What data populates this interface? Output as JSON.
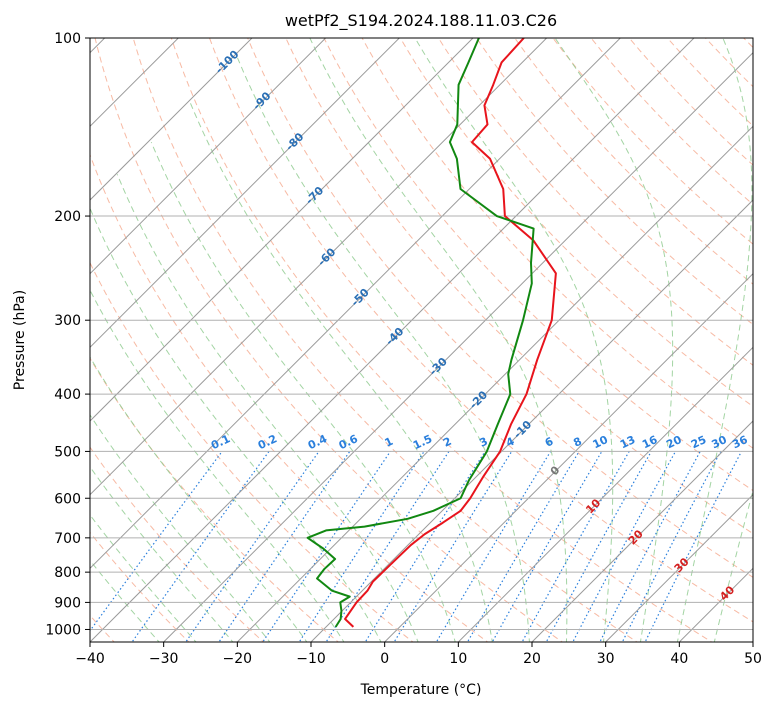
{
  "chart_data": {
    "type": "line",
    "diagram": "skew-T log-P",
    "title": "wetPf2_S194.2024.188.11.03.C26",
    "xlabel": "Temperature (°C)",
    "ylabel": "Pressure (hPa)",
    "xlim": [
      -40,
      50
    ],
    "ylim": [
      1050,
      100
    ],
    "y_scale": "log",
    "grid": true,
    "x_ticks": [
      -40,
      -30,
      -20,
      -10,
      0,
      10,
      20,
      30,
      40,
      50
    ],
    "x_tick_labels": [
      "−40",
      "−30",
      "−20",
      "−10",
      "0",
      "10",
      "20",
      "30",
      "40",
      "50"
    ],
    "y_ticks": [
      1000,
      900,
      800,
      700,
      600,
      500,
      400,
      300,
      200,
      100
    ],
    "y_tick_labels": [
      "1000",
      "900",
      "800",
      "700",
      "600",
      "500",
      "400",
      "300",
      "200",
      "100"
    ],
    "colors": {
      "temperature": "#e8141c",
      "dewpoint": "#118811",
      "isotherm": "#9a9a9a",
      "dry_adiabat": "#f4a386",
      "moist_adiabat": "#8cc98c",
      "mixing_ratio": "#2a7fdc",
      "isotherm_label": "#2a6fb5",
      "saturation_label": "#d42020"
    },
    "series": [
      {
        "name": "temperature",
        "points": [
          [
            -6.3,
            990
          ],
          [
            -8.5,
            960
          ],
          [
            -9.2,
            900
          ],
          [
            -9.3,
            860
          ],
          [
            -9.8,
            830
          ],
          [
            -9.7,
            770
          ],
          [
            -9.6,
            720
          ],
          [
            -9.2,
            690
          ],
          [
            -8.3,
            660
          ],
          [
            -7.5,
            630
          ],
          [
            -7.9,
            600
          ],
          [
            -9.1,
            550
          ],
          [
            -10.2,
            500
          ],
          [
            -12.4,
            450
          ],
          [
            -14.4,
            400
          ],
          [
            -17.6,
            350
          ],
          [
            -21.0,
            300
          ],
          [
            -26.8,
            250
          ],
          [
            -34.3,
            220
          ],
          [
            -41.5,
            200
          ],
          [
            -45.4,
            180
          ],
          [
            -51.3,
            160
          ],
          [
            -56.0,
            150
          ],
          [
            -56.3,
            140
          ],
          [
            -59.3,
            130
          ],
          [
            -60.9,
            120
          ],
          [
            -62.8,
            110
          ],
          [
            -63.1,
            100
          ]
        ]
      },
      {
        "name": "dewpoint",
        "points": [
          [
            -8.7,
            990
          ],
          [
            -9.1,
            960
          ],
          [
            -10.1,
            930
          ],
          [
            -11.4,
            900
          ],
          [
            -10.9,
            880
          ],
          [
            -14.1,
            860
          ],
          [
            -17.8,
            820
          ],
          [
            -18.1,
            790
          ],
          [
            -18.0,
            760
          ],
          [
            -21.0,
            730
          ],
          [
            -24.6,
            700
          ],
          [
            -23.1,
            680
          ],
          [
            -18.4,
            670
          ],
          [
            -13.6,
            650
          ],
          [
            -11.2,
            630
          ],
          [
            -9.2,
            600
          ],
          [
            -10.5,
            560
          ],
          [
            -12.0,
            500
          ],
          [
            -14.2,
            450
          ],
          [
            -16.6,
            400
          ],
          [
            -19.6,
            370
          ],
          [
            -21.1,
            350
          ],
          [
            -24.9,
            300
          ],
          [
            -28.7,
            260
          ],
          [
            -31.6,
            240
          ],
          [
            -35.9,
            210
          ],
          [
            -42.6,
            200
          ],
          [
            -51.2,
            180
          ],
          [
            -55.8,
            160
          ],
          [
            -59.0,
            150
          ],
          [
            -60.4,
            140
          ],
          [
            -62.9,
            130
          ],
          [
            -65.6,
            120
          ],
          [
            -67.3,
            110
          ],
          [
            -69.2,
            100
          ]
        ]
      }
    ],
    "isotherm_labels": [
      "-100",
      "-90",
      "-80",
      "-70",
      "-60",
      "-50",
      "-40",
      "-30",
      "-20",
      "-10",
      "0",
      "10",
      "20",
      "30",
      "40"
    ],
    "mixing_ratio_labels": [
      "0.1",
      "0.2",
      "0.4",
      "0.6",
      "1",
      "1.5",
      "2",
      "3",
      "4",
      "6",
      "8",
      "10",
      "13",
      "16",
      "20",
      "25",
      "30",
      "36"
    ],
    "mixing_ratio_values": [
      0.1,
      0.2,
      0.4,
      0.6,
      1,
      1.5,
      2,
      3,
      4,
      6,
      8,
      10,
      13,
      16,
      20,
      25,
      30,
      36
    ]
  }
}
